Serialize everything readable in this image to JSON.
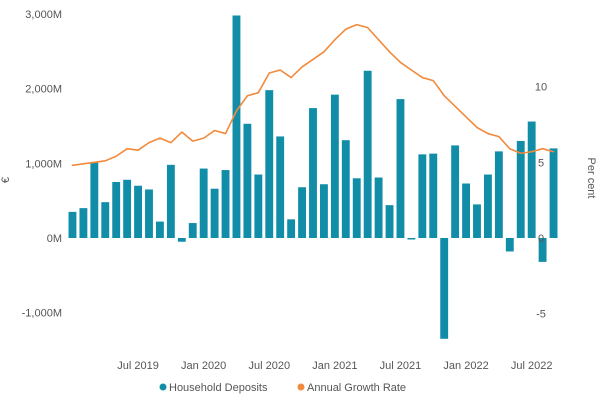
{
  "chart_data": {
    "type": "bar+line",
    "left_axis": {
      "label": "€",
      "ylim": [
        -1500,
        3000
      ],
      "ticks": [
        -1000,
        0,
        1000,
        2000,
        3000
      ],
      "tick_labels": [
        "-1,000M",
        "0M",
        "1,000M",
        "2,000M",
        "3,000M"
      ]
    },
    "right_axis": {
      "label": "Per cent",
      "ylim": [
        -7.4,
        14.8
      ],
      "ticks": [
        -5,
        0,
        5,
        10
      ],
      "tick_labels": [
        "-5",
        "0",
        "5",
        "10"
      ]
    },
    "x_tick_labels": [
      {
        "label": "Jul 2019",
        "index": 6
      },
      {
        "label": "Jan 2020",
        "index": 12
      },
      {
        "label": "Jul 2020",
        "index": 18
      },
      {
        "label": "Jan 2021",
        "index": 24
      },
      {
        "label": "Jul 2021",
        "index": 30
      },
      {
        "label": "Jan 2022",
        "index": 36
      },
      {
        "label": "Jul 2022",
        "index": 42
      }
    ],
    "months": [
      "Jan 2019",
      "Feb 2019",
      "Mar 2019",
      "Apr 2019",
      "May 2019",
      "Jun 2019",
      "Jul 2019",
      "Aug 2019",
      "Sep 2019",
      "Oct 2019",
      "Nov 2019",
      "Dec 2019",
      "Jan 2020",
      "Feb 2020",
      "Mar 2020",
      "Apr 2020",
      "May 2020",
      "Jun 2020",
      "Jul 2020",
      "Aug 2020",
      "Sep 2020",
      "Oct 2020",
      "Nov 2020",
      "Dec 2020",
      "Jan 2021",
      "Feb 2021",
      "Mar 2021",
      "Apr 2021",
      "May 2021",
      "Jun 2021",
      "Jul 2021",
      "Aug 2021",
      "Sep 2021",
      "Oct 2021",
      "Nov 2021",
      "Dec 2021",
      "Jan 2022",
      "Feb 2022",
      "Mar 2022",
      "Apr 2022",
      "May 2022",
      "Jun 2022",
      "Jul 2022",
      "Aug 2022",
      "Sep 2022"
    ],
    "series": [
      {
        "name": "Household Deposits",
        "type": "bar",
        "axis": "left",
        "color": "#118DA8",
        "values": [
          350,
          400,
          1010,
          480,
          750,
          780,
          700,
          650,
          220,
          980,
          -50,
          200,
          930,
          660,
          910,
          2980,
          1530,
          850,
          1980,
          1360,
          250,
          680,
          1740,
          720,
          1920,
          1310,
          800,
          2240,
          810,
          440,
          1860,
          -20,
          1120,
          1130,
          -1350,
          1240,
          730,
          450,
          850,
          1160,
          -180,
          1300,
          1560,
          -320,
          1200
        ]
      },
      {
        "name": "Annual Growth Rate",
        "type": "line",
        "axis": "right",
        "color": "#F28A3C",
        "values": [
          4.8,
          4.9,
          5.0,
          5.1,
          5.4,
          5.9,
          5.8,
          6.3,
          6.6,
          6.3,
          7.0,
          6.4,
          6.6,
          7.1,
          6.9,
          8.4,
          9.4,
          9.6,
          10.9,
          11.1,
          10.6,
          11.3,
          11.8,
          12.3,
          13.1,
          13.8,
          14.1,
          13.9,
          13.1,
          12.3,
          11.6,
          11.1,
          10.6,
          10.4,
          9.4,
          8.7,
          8.0,
          7.3,
          6.9,
          6.7,
          5.9,
          5.6,
          5.7,
          5.9,
          5.7
        ]
      }
    ],
    "legend_position": "bottom",
    "grid": false
  }
}
